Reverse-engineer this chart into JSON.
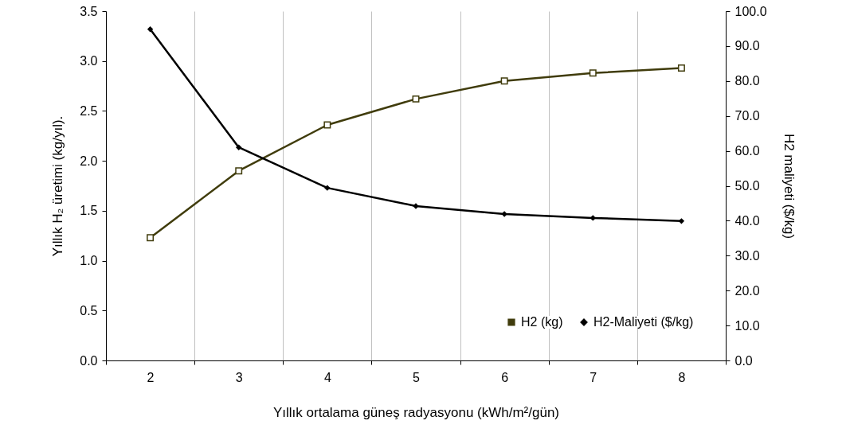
{
  "chart_data": {
    "type": "line",
    "xlabel": "Yıllık ortalama güneş radyasyonu (kWh/m²/gün)",
    "ylabel": "Yıllık H₂ üretimi (kg/yıl).",
    "y2label": "H2 maliyeti ($/kg)",
    "categories": [
      "2",
      "3",
      "4",
      "5",
      "6",
      "7",
      "8"
    ],
    "series": [
      {
        "name": "H2 (kg)",
        "color": "#403c0c",
        "marker": "square",
        "values": [
          1.23,
          1.9,
          2.36,
          2.62,
          2.8,
          2.88,
          2.93
        ]
      },
      {
        "name": "H2-Maliyeti ($/kg)",
        "color": "#000000",
        "marker": "diamond",
        "axis": "y2",
        "values": [
          94.8,
          61.0,
          49.4,
          44.2,
          41.9,
          40.8,
          39.9
        ]
      }
    ],
    "ylim": [
      0,
      3.5
    ],
    "yticks": [
      {
        "value": 0,
        "label": "0.0"
      },
      0.5,
      {
        "value": 1,
        "label": "1.0"
      },
      1.5,
      {
        "value": 2,
        "label": "2.0"
      },
      2.5,
      {
        "value": 3,
        "label": "3.0"
      },
      3.5
    ],
    "y2lim": [
      0,
      100
    ],
    "y2ticks": [
      {
        "value": 0,
        "label": "0.0"
      },
      {
        "value": 10,
        "label": "10.0"
      },
      {
        "value": 20,
        "label": "20.0"
      },
      {
        "value": 30,
        "label": "30.0"
      },
      {
        "value": 40,
        "label": "40.0"
      },
      {
        "value": 50,
        "label": "50.0"
      },
      {
        "value": 60,
        "label": "60.0"
      },
      {
        "value": 70,
        "label": "70.0"
      },
      {
        "value": 80,
        "label": "80.0"
      },
      {
        "value": 90,
        "label": "90.0"
      },
      {
        "value": 100,
        "label": "100.0"
      }
    ],
    "grid": "x",
    "legend": "bottom right",
    "line_style": "solid"
  }
}
